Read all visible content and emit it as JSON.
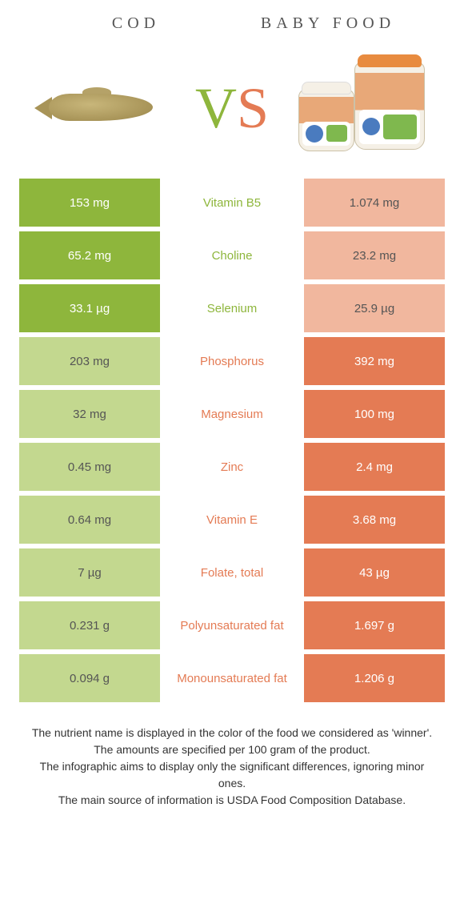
{
  "colors": {
    "green": "#8eb63c",
    "green_soft": "#c3d88f",
    "orange": "#e47b54",
    "orange_soft": "#f1b79e",
    "text": "#333333",
    "background": "#ffffff"
  },
  "header": {
    "left_title": "COD",
    "right_title": "BABY FOOD",
    "vs_v": "V",
    "vs_s": "S"
  },
  "table": {
    "rows": [
      {
        "nutrient": "Vitamin B5",
        "left": "153 mg",
        "right": "1.074 mg",
        "winner": "left"
      },
      {
        "nutrient": "Choline",
        "left": "65.2 mg",
        "right": "23.2 mg",
        "winner": "left"
      },
      {
        "nutrient": "Selenium",
        "left": "33.1 µg",
        "right": "25.9 µg",
        "winner": "left"
      },
      {
        "nutrient": "Phosphorus",
        "left": "203 mg",
        "right": "392 mg",
        "winner": "right"
      },
      {
        "nutrient": "Magnesium",
        "left": "32 mg",
        "right": "100 mg",
        "winner": "right"
      },
      {
        "nutrient": "Zinc",
        "left": "0.45 mg",
        "right": "2.4 mg",
        "winner": "right"
      },
      {
        "nutrient": "Vitamin E",
        "left": "0.64 mg",
        "right": "3.68 mg",
        "winner": "right"
      },
      {
        "nutrient": "Folate, total",
        "left": "7 µg",
        "right": "43 µg",
        "winner": "right"
      },
      {
        "nutrient": "Polyunsaturated fat",
        "left": "0.231 g",
        "right": "1.697 g",
        "winner": "right"
      },
      {
        "nutrient": "Monounsaturated fat",
        "left": "0.094 g",
        "right": "1.206 g",
        "winner": "right"
      }
    ]
  },
  "footer": {
    "line1": "The nutrient name is displayed in the color of the food we considered as 'winner'.",
    "line2": "The amounts are specified per 100 gram of the product.",
    "line3": "The infographic aims to display only the significant differences, ignoring minor ones.",
    "line4": "The main source of information is USDA Food Composition Database."
  }
}
